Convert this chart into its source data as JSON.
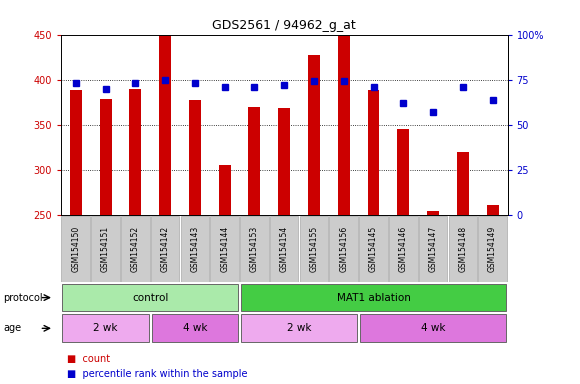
{
  "title": "GDS2561 / 94962_g_at",
  "samples": [
    "GSM154150",
    "GSM154151",
    "GSM154152",
    "GSM154142",
    "GSM154143",
    "GSM154144",
    "GSM154153",
    "GSM154154",
    "GSM154155",
    "GSM154156",
    "GSM154145",
    "GSM154146",
    "GSM154147",
    "GSM154148",
    "GSM154149"
  ],
  "counts": [
    389,
    379,
    390,
    450,
    378,
    306,
    370,
    369,
    427,
    450,
    389,
    345,
    254,
    320,
    261
  ],
  "percentile_ranks": [
    73,
    70,
    73,
    75,
    73,
    71,
    71,
    72,
    74,
    74,
    71,
    62,
    57,
    71,
    64
  ],
  "ylim_left": [
    250,
    450
  ],
  "ylim_right": [
    0,
    100
  ],
  "yticks_left": [
    250,
    300,
    350,
    400,
    450
  ],
  "yticks_right": [
    0,
    25,
    50,
    75,
    100
  ],
  "bar_color": "#cc0000",
  "dot_color": "#0000cc",
  "bar_bottom": 250,
  "bar_width": 0.4,
  "grid_dotted_color": "#000000",
  "protocol_groups": [
    {
      "label": "control",
      "start": 0,
      "end": 6,
      "color": "#aaeaaa"
    },
    {
      "label": "MAT1 ablation",
      "start": 6,
      "end": 15,
      "color": "#44cc44"
    }
  ],
  "age_groups": [
    {
      "label": "2 wk",
      "start": 0,
      "end": 3,
      "color": "#eeaaee"
    },
    {
      "label": "4 wk",
      "start": 3,
      "end": 6,
      "color": "#dd77dd"
    },
    {
      "label": "2 wk",
      "start": 6,
      "end": 10,
      "color": "#eeaaee"
    },
    {
      "label": "4 wk",
      "start": 10,
      "end": 15,
      "color": "#dd77dd"
    }
  ],
  "legend_count_label": "count",
  "legend_pct_label": "percentile rank within the sample",
  "protocol_label": "protocol",
  "age_label": "age",
  "tick_color_left": "#cc0000",
  "tick_color_right": "#0000cc",
  "bg_color": "#ffffff",
  "plot_bg": "#ffffff",
  "xticklabel_bg": "#cccccc"
}
